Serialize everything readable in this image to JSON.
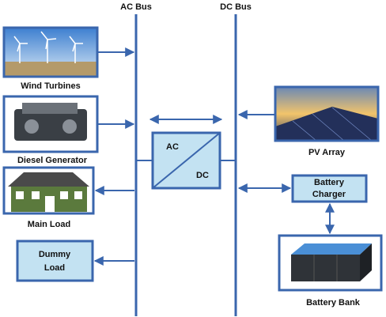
{
  "buses": {
    "ac": "AC Bus",
    "dc": "DC Bus"
  },
  "components": {
    "wind": "Wind Turbines",
    "diesel": "Diesel Generator",
    "main_load": "Main Load",
    "dummy_load": [
      "Dummy",
      "Load"
    ],
    "pv": "PV Array",
    "charger": [
      "Battery",
      "Charger"
    ],
    "battery": "Battery Bank"
  },
  "converter": {
    "top": "AC",
    "bottom": "DC"
  }
}
